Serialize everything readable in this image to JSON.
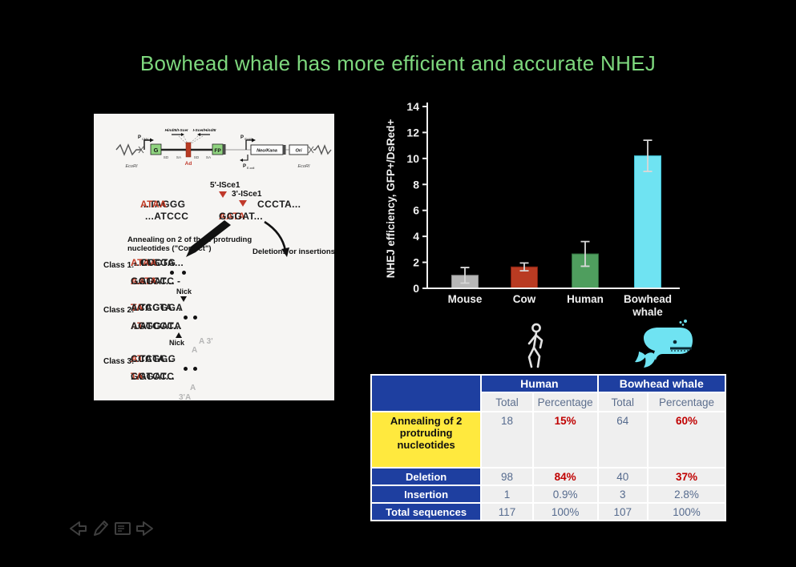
{
  "title": "Bowhead whale has more efficient and accurate NHEJ",
  "colors": {
    "title_green": "#7ed87e",
    "table_blue": "#1e3fa0",
    "table_yellow": "#ffe93e",
    "highlight_red": "#c00000",
    "whale_cyan": "#6fe3f2"
  },
  "chart_data": {
    "type": "bar",
    "categories": [
      "Mouse",
      "Cow",
      "Human",
      "Bowhead whale"
    ],
    "values": [
      1.0,
      1.65,
      2.65,
      10.2
    ],
    "error_bars": [
      0.6,
      0.3,
      0.95,
      1.2
    ],
    "bar_colors": [
      "#b7b7b7",
      "#b93b22",
      "#4f9e5e",
      "#6fe3f2"
    ],
    "bar_strokes": [
      "#8f8f8f",
      "#801f10",
      "#2f6b3c",
      "#3fc3d8"
    ],
    "ylabel": "NHEJ efficiency, GFP+/DsRed+",
    "xlabel": "",
    "ylim": [
      0,
      14
    ],
    "yticks": [
      0,
      2,
      4,
      6,
      8,
      10,
      12,
      14
    ],
    "grid": false,
    "legend": false
  },
  "diagram": {
    "construct": {
      "ecori": "EcoRI",
      "p": "P",
      "cmv": "CMV",
      "sv40": "SV40",
      "ecoli": "E.coli",
      "enzyme_left": "HindIII/I-SceI",
      "enzyme_right": "I-SceI/HindIII",
      "g": "G",
      "fp": "FP",
      "sd": "SD",
      "sa": "SA",
      "ad": "Ad",
      "neo_kana": "Neo/Kana",
      "ori": "Ori"
    },
    "isce5_label": "5'-ISce1",
    "isce3_label": "3'-ISce1",
    "seq_top_black": "...TAGGG",
    "seq_top_red": "ATAA",
    "seq_top_right": "CCCTA...",
    "seq_bot_left": "...ATCCC",
    "seq_bot_red": "AATA",
    "seq_bot_black": "GGGAT...",
    "annealing_note_line1": "Annealing on 2 of the 4 protruding",
    "annealing_note_line2": "nucleotides (\"Correct\")",
    "deletions_note": "Deletions or insertions",
    "nick_label": "Nick",
    "class1": {
      "label": "Class 1:",
      "top_pre": "...TAGGG",
      "top_red": "ATAA",
      "top_post": " - CCCTA...",
      "bot_pre": "...ATCCC - ",
      "bot_red": "AATA",
      "bot_post": "GGGAT..."
    },
    "class2": {
      "label": "Class 2:",
      "top_pre": "...TAGGGA",
      "top_red": "TA",
      "top_post": "ACCCTA...",
      "bot_pre": "...ATCCCA",
      "bot_red": "AT",
      "bot_post": "AGGGAT..."
    },
    "class3": {
      "label": "Class 3:",
      "top_pre": "...TAGGG",
      "top_red": "AT",
      "top_post": "CCCTA...",
      "bot_pre": "...ATCCC",
      "bot_red": "TA",
      "bot_post": "GGGAT..."
    },
    "gray_a3": "A 3'",
    "gray_a_mid": "A",
    "gray_a_low": "A",
    "gray_3a": "3'A"
  },
  "icons": {
    "human": "walking-person",
    "whale": "bowhead-whale",
    "nav": [
      "previous-arrow",
      "pen",
      "slide-notes",
      "next-arrow"
    ]
  },
  "table": {
    "groups": [
      "Human",
      "Bowhead whale"
    ],
    "subheaders": [
      "Total",
      "Percentage",
      "Total",
      "Percentage"
    ],
    "rows": [
      {
        "label": "Annealing of 2 protruding nucleotides",
        "human_total": "18",
        "human_pct": "15%",
        "whale_total": "64",
        "whale_pct": "60%"
      },
      {
        "label": "Deletion",
        "human_total": "98",
        "human_pct": "84%",
        "whale_total": "40",
        "whale_pct": "37%"
      },
      {
        "label": "Insertion",
        "human_total": "1",
        "human_pct": "0.9%",
        "whale_total": "3",
        "whale_pct": "2.8%"
      },
      {
        "label": "Total sequences",
        "human_total": "117",
        "human_pct": "100%",
        "whale_total": "107",
        "whale_pct": "100%"
      }
    ]
  }
}
